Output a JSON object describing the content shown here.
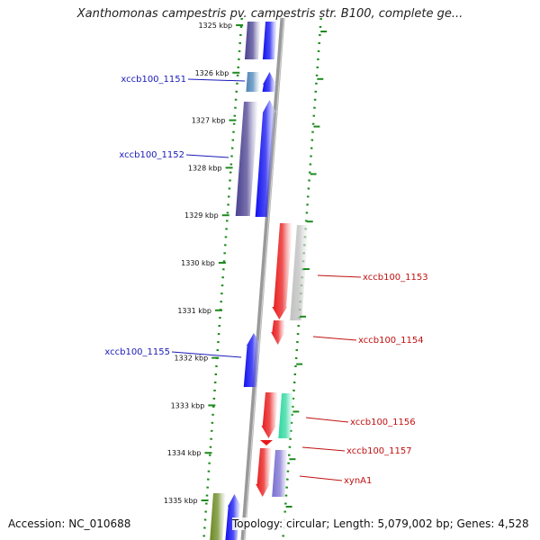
{
  "title": "Xanthomonas campestris pv. campestris str. B100, complete ge...",
  "accession": "Accession: NC_010688",
  "stats": "Topology: circular; Length: 5,079,002 bp; Genes: 4,528",
  "colors": {
    "forward": "#1010f0",
    "reverse": "#e81818",
    "dark_purple": "#4a4190",
    "light_grey": "#c0c0c0",
    "teal": "#2fd8a0",
    "lavender": "#7a70d0",
    "steel_blue": "#4f86b8",
    "olive": "#6b8a22",
    "backbone": "#999999",
    "dot_ring": "#1e8a1e",
    "label_blue": "#1a1ab8",
    "label_red": "#c01010"
  },
  "ticks": [
    {
      "label": "1325 kbp",
      "pos": 1325
    },
    {
      "label": "1326 kbp",
      "pos": 1326
    },
    {
      "label": "1327 kbp",
      "pos": 1327
    },
    {
      "label": "1328 kbp",
      "pos": 1328
    },
    {
      "label": "1329 kbp",
      "pos": 1329
    },
    {
      "label": "1330 kbp",
      "pos": 1330
    },
    {
      "label": "1331 kbp",
      "pos": 1331
    },
    {
      "label": "1332 kbp",
      "pos": 1332
    },
    {
      "label": "1333 kbp",
      "pos": 1333
    },
    {
      "label": "1334 kbp",
      "pos": 1334
    },
    {
      "label": "1335 kbp",
      "pos": 1335
    }
  ],
  "genes": [
    {
      "name": "xccb100_1151",
      "strand": "forward"
    },
    {
      "name": "xccb100_1152",
      "strand": "forward"
    },
    {
      "name": "xccb100_1153",
      "strand": "reverse"
    },
    {
      "name": "xccb100_1154",
      "strand": "reverse"
    },
    {
      "name": "xccb100_1155",
      "strand": "forward"
    },
    {
      "name": "xccb100_1156",
      "strand": "reverse"
    },
    {
      "name": "xccb100_1157",
      "strand": "reverse"
    },
    {
      "name": "xynA1",
      "strand": "reverse"
    }
  ]
}
